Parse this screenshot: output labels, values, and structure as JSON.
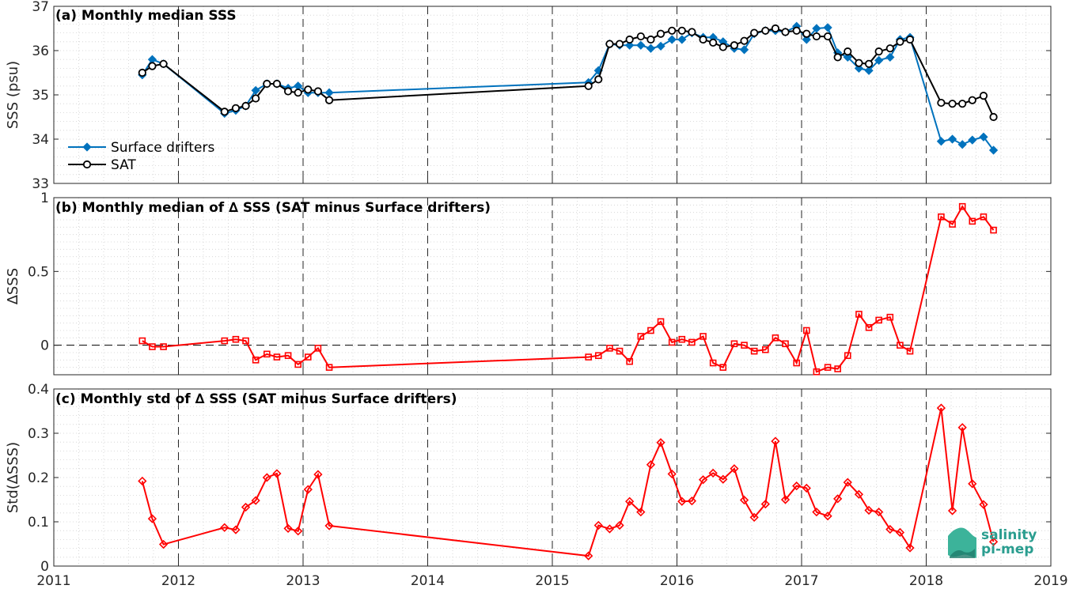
{
  "xaxis": {
    "min": 2011,
    "max": 2019,
    "ticks": [
      2011,
      2012,
      2013,
      2014,
      2015,
      2016,
      2017,
      2018,
      2019
    ],
    "tick_labels": [
      "2011",
      "2012",
      "2013",
      "2014",
      "2015",
      "2016",
      "2017",
      "2018",
      "2019"
    ]
  },
  "logo": {
    "line1": "salinity",
    "line2": "pi-mep"
  },
  "colors": {
    "drifters": "#0072bd",
    "sat": "#000000",
    "delta": "#ff0000",
    "grid": "#d0d0d0",
    "major_grid": "#262626"
  },
  "chart_data": [
    {
      "type": "line",
      "title": "(a) Monthly median SSS",
      "ylabel": "SSS (psu)",
      "ylim": [
        33,
        37
      ],
      "yticks": [
        33,
        34,
        35,
        36,
        37
      ],
      "legend": "bottom-left",
      "series": [
        {
          "name": "Surface drifters",
          "marker": "diamond",
          "x": [
            2011.71,
            2011.79,
            2011.88,
            2012.37,
            2012.46,
            2012.54,
            2012.62,
            2012.71,
            2012.79,
            2012.88,
            2012.96,
            2013.04,
            2013.12,
            2013.21,
            2015.29,
            2015.37,
            2015.46,
            2015.54,
            2015.62,
            2015.71,
            2015.79,
            2015.87,
            2015.96,
            2016.04,
            2016.12,
            2016.21,
            2016.29,
            2016.37,
            2016.46,
            2016.54,
            2016.62,
            2016.71,
            2016.79,
            2016.87,
            2016.96,
            2017.04,
            2017.12,
            2017.21,
            2017.29,
            2017.37,
            2017.46,
            2017.54,
            2017.62,
            2017.71,
            2017.79,
            2017.87,
            2018.12,
            2018.21,
            2018.29,
            2018.37,
            2018.46,
            2018.54
          ],
          "y": [
            35.45,
            35.8,
            35.7,
            34.58,
            34.65,
            34.75,
            35.1,
            35.25,
            35.25,
            35.15,
            35.2,
            35.05,
            35.05,
            35.05,
            35.28,
            35.55,
            36.15,
            36.12,
            36.12,
            36.12,
            36.05,
            36.1,
            36.25,
            36.25,
            36.4,
            36.3,
            36.3,
            36.2,
            36.05,
            36.02,
            36.38,
            36.45,
            36.45,
            36.42,
            36.55,
            36.25,
            36.5,
            36.52,
            35.95,
            35.85,
            35.6,
            35.55,
            35.78,
            35.85,
            36.25,
            36.3,
            33.95,
            34.0,
            33.88,
            33.98,
            34.05,
            33.75
          ]
        },
        {
          "name": "SAT",
          "marker": "circle",
          "x": [
            2011.71,
            2011.79,
            2011.88,
            2012.37,
            2012.46,
            2012.54,
            2012.62,
            2012.71,
            2012.79,
            2012.88,
            2012.96,
            2013.04,
            2013.12,
            2013.21,
            2015.29,
            2015.37,
            2015.46,
            2015.54,
            2015.62,
            2015.71,
            2015.79,
            2015.87,
            2015.96,
            2016.04,
            2016.12,
            2016.21,
            2016.29,
            2016.37,
            2016.46,
            2016.54,
            2016.62,
            2016.71,
            2016.79,
            2016.87,
            2016.96,
            2017.04,
            2017.12,
            2017.21,
            2017.29,
            2017.37,
            2017.46,
            2017.54,
            2017.62,
            2017.71,
            2017.79,
            2017.87,
            2018.12,
            2018.21,
            2018.29,
            2018.37,
            2018.46,
            2018.54
          ],
          "y": [
            35.5,
            35.65,
            35.7,
            34.62,
            34.7,
            34.75,
            34.92,
            35.25,
            35.25,
            35.08,
            35.05,
            35.12,
            35.08,
            34.88,
            35.2,
            35.35,
            36.15,
            36.15,
            36.25,
            36.32,
            36.25,
            36.38,
            36.45,
            36.45,
            36.42,
            36.25,
            36.18,
            36.08,
            36.12,
            36.22,
            36.4,
            36.45,
            36.5,
            36.42,
            36.45,
            36.38,
            36.32,
            36.32,
            35.85,
            35.98,
            35.72,
            35.7,
            35.98,
            36.05,
            36.2,
            36.25,
            34.82,
            34.8,
            34.8,
            34.88,
            34.98,
            34.5
          ]
        }
      ]
    },
    {
      "type": "line",
      "title": "(b) Monthly median of ∆ SSS (SAT minus Surface drifters)",
      "ylabel": "∆SSS",
      "ylim": [
        -0.2,
        1
      ],
      "yticks": [
        0,
        0.5,
        1
      ],
      "ytick_labels": [
        "0",
        "0.5",
        "1"
      ],
      "zero_line": true,
      "series": [
        {
          "marker": "square",
          "x": [
            2011.71,
            2011.79,
            2011.88,
            2012.37,
            2012.46,
            2012.54,
            2012.62,
            2012.71,
            2012.79,
            2012.88,
            2012.96,
            2013.04,
            2013.12,
            2013.21,
            2015.29,
            2015.37,
            2015.46,
            2015.54,
            2015.62,
            2015.71,
            2015.79,
            2015.87,
            2015.96,
            2016.04,
            2016.12,
            2016.21,
            2016.29,
            2016.37,
            2016.46,
            2016.54,
            2016.62,
            2016.71,
            2016.79,
            2016.87,
            2016.96,
            2017.04,
            2017.12,
            2017.21,
            2017.29,
            2017.37,
            2017.46,
            2017.54,
            2017.62,
            2017.71,
            2017.79,
            2017.87,
            2018.12,
            2018.21,
            2018.29,
            2018.37,
            2018.46,
            2018.54
          ],
          "y": [
            0.03,
            -0.01,
            -0.01,
            0.03,
            0.04,
            0.03,
            -0.1,
            -0.06,
            -0.08,
            -0.07,
            -0.13,
            -0.08,
            -0.02,
            -0.15,
            -0.08,
            -0.07,
            -0.02,
            -0.04,
            -0.11,
            0.06,
            0.1,
            0.16,
            0.02,
            0.04,
            0.02,
            0.06,
            -0.12,
            -0.15,
            0.01,
            0.0,
            -0.04,
            -0.03,
            0.05,
            0.01,
            -0.12,
            0.1,
            -0.18,
            -0.15,
            -0.16,
            -0.07,
            0.21,
            0.12,
            0.17,
            0.19,
            0.0,
            -0.04,
            0.87,
            0.82,
            0.94,
            0.84,
            0.87,
            0.78
          ]
        }
      ]
    },
    {
      "type": "line",
      "title": "(c) Monthly std of ∆ SSS (SAT minus Surface drifters)",
      "ylabel": "Std(∆SSS)",
      "ylim": [
        0,
        0.4
      ],
      "yticks": [
        0,
        0.1,
        0.2,
        0.3,
        0.4
      ],
      "ytick_labels": [
        "0",
        "0.1",
        "0.2",
        "0.3",
        "0.4"
      ],
      "series": [
        {
          "marker": "diamond",
          "x": [
            2011.71,
            2011.79,
            2011.88,
            2012.37,
            2012.46,
            2012.54,
            2012.62,
            2012.71,
            2012.79,
            2012.88,
            2012.96,
            2013.04,
            2013.12,
            2013.21,
            2015.29,
            2015.37,
            2015.46,
            2015.54,
            2015.62,
            2015.71,
            2015.79,
            2015.87,
            2015.96,
            2016.04,
            2016.12,
            2016.21,
            2016.29,
            2016.37,
            2016.46,
            2016.54,
            2016.62,
            2016.71,
            2016.79,
            2016.87,
            2016.96,
            2017.04,
            2017.12,
            2017.21,
            2017.29,
            2017.37,
            2017.46,
            2017.54,
            2017.62,
            2017.71,
            2017.79,
            2017.87,
            2018.12,
            2018.21,
            2018.29,
            2018.37,
            2018.46,
            2018.54
          ],
          "y": [
            0.192,
            0.107,
            0.049,
            0.087,
            0.082,
            0.133,
            0.148,
            0.2,
            0.209,
            0.085,
            0.079,
            0.173,
            0.207,
            0.091,
            0.023,
            0.092,
            0.084,
            0.092,
            0.146,
            0.122,
            0.229,
            0.279,
            0.208,
            0.146,
            0.147,
            0.195,
            0.21,
            0.196,
            0.22,
            0.149,
            0.11,
            0.14,
            0.282,
            0.15,
            0.181,
            0.176,
            0.122,
            0.113,
            0.152,
            0.189,
            0.162,
            0.126,
            0.122,
            0.083,
            0.076,
            0.041,
            0.357,
            0.125,
            0.313,
            0.186,
            0.139,
            0.055
          ]
        }
      ]
    }
  ]
}
